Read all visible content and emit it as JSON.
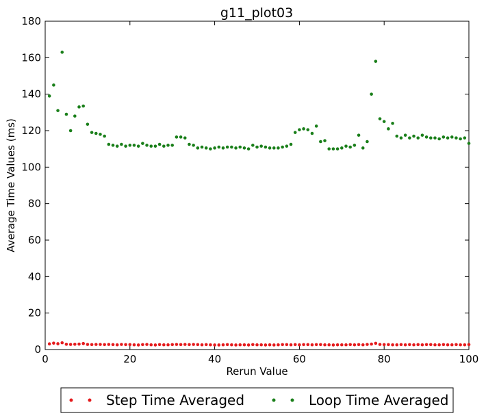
{
  "chart_data": {
    "type": "scatter",
    "title": "g11_plot03",
    "xlabel": "Rerun Value",
    "ylabel": "Average Time Values (ms)",
    "xlim": [
      0,
      100
    ],
    "ylim": [
      0,
      180
    ],
    "xticks": [
      0,
      20,
      40,
      60,
      80,
      100
    ],
    "yticks": [
      0,
      20,
      40,
      60,
      80,
      100,
      120,
      140,
      160,
      180
    ],
    "grid": false,
    "legend_position": "bottom-center, outside plot",
    "x": [
      1,
      2,
      3,
      4,
      5,
      6,
      7,
      8,
      9,
      10,
      11,
      12,
      13,
      14,
      15,
      16,
      17,
      18,
      19,
      20,
      21,
      22,
      23,
      24,
      25,
      26,
      27,
      28,
      29,
      30,
      31,
      32,
      33,
      34,
      35,
      36,
      37,
      38,
      39,
      40,
      41,
      42,
      43,
      44,
      45,
      46,
      47,
      48,
      49,
      50,
      51,
      52,
      53,
      54,
      55,
      56,
      57,
      58,
      59,
      60,
      61,
      62,
      63,
      64,
      65,
      66,
      67,
      68,
      69,
      70,
      71,
      72,
      73,
      74,
      75,
      76,
      77,
      78,
      79,
      80,
      81,
      82,
      83,
      84,
      85,
      86,
      87,
      88,
      89,
      90,
      91,
      92,
      93,
      94,
      95,
      96,
      97,
      98,
      99,
      100
    ],
    "series": [
      {
        "name": "Step Time Averaged",
        "color": "#e41a1c",
        "values": [
          3.1,
          3.5,
          3.2,
          3.7,
          2.9,
          2.8,
          2.9,
          3.0,
          3.3,
          2.8,
          2.7,
          2.8,
          2.8,
          2.7,
          2.8,
          2.7,
          2.6,
          2.8,
          2.7,
          2.7,
          2.6,
          2.5,
          2.7,
          2.8,
          2.6,
          2.5,
          2.7,
          2.6,
          2.6,
          2.7,
          2.8,
          2.7,
          2.8,
          2.7,
          2.8,
          2.7,
          2.6,
          2.7,
          2.6,
          2.5,
          2.5,
          2.6,
          2.7,
          2.6,
          2.5,
          2.6,
          2.6,
          2.5,
          2.7,
          2.6,
          2.6,
          2.5,
          2.6,
          2.5,
          2.6,
          2.7,
          2.7,
          2.6,
          2.7,
          2.6,
          2.7,
          2.7,
          2.6,
          2.7,
          2.7,
          2.6,
          2.6,
          2.5,
          2.6,
          2.6,
          2.6,
          2.7,
          2.6,
          2.7,
          2.6,
          2.8,
          3.0,
          3.4,
          2.8,
          2.7,
          2.7,
          2.6,
          2.6,
          2.7,
          2.6,
          2.7,
          2.6,
          2.7,
          2.6,
          2.7,
          2.7,
          2.6,
          2.6,
          2.7,
          2.6,
          2.6,
          2.7,
          2.6,
          2.6,
          2.7
        ]
      },
      {
        "name": "Loop Time Averaged",
        "color": "#1a7f1a",
        "values": [
          139,
          145,
          131,
          163,
          129,
          120,
          128,
          133,
          133.5,
          123.5,
          119,
          118.5,
          118,
          117,
          112.5,
          112,
          111.5,
          112.5,
          111.5,
          112,
          112,
          111.5,
          113,
          112,
          111.5,
          111.5,
          112.5,
          111.5,
          112,
          112,
          116.5,
          116.5,
          116,
          112.5,
          112,
          110.5,
          111,
          110.5,
          110,
          110.5,
          111,
          110.5,
          111,
          111,
          110.5,
          111,
          110.5,
          110,
          112,
          111,
          111.5,
          111,
          110.5,
          110.5,
          110.5,
          111,
          111.5,
          112.5,
          119,
          120.5,
          121,
          120.5,
          118.5,
          122.5,
          114,
          114.5,
          110,
          110,
          110,
          110.5,
          111.5,
          111,
          112,
          117.5,
          110.5,
          114,
          140,
          158,
          126.5,
          125,
          121,
          124,
          117,
          116,
          117.5,
          116,
          117,
          116,
          117.5,
          116.5,
          116,
          116,
          115.5,
          116.5,
          116,
          116.5,
          116,
          115.5,
          116,
          113
        ]
      }
    ]
  }
}
